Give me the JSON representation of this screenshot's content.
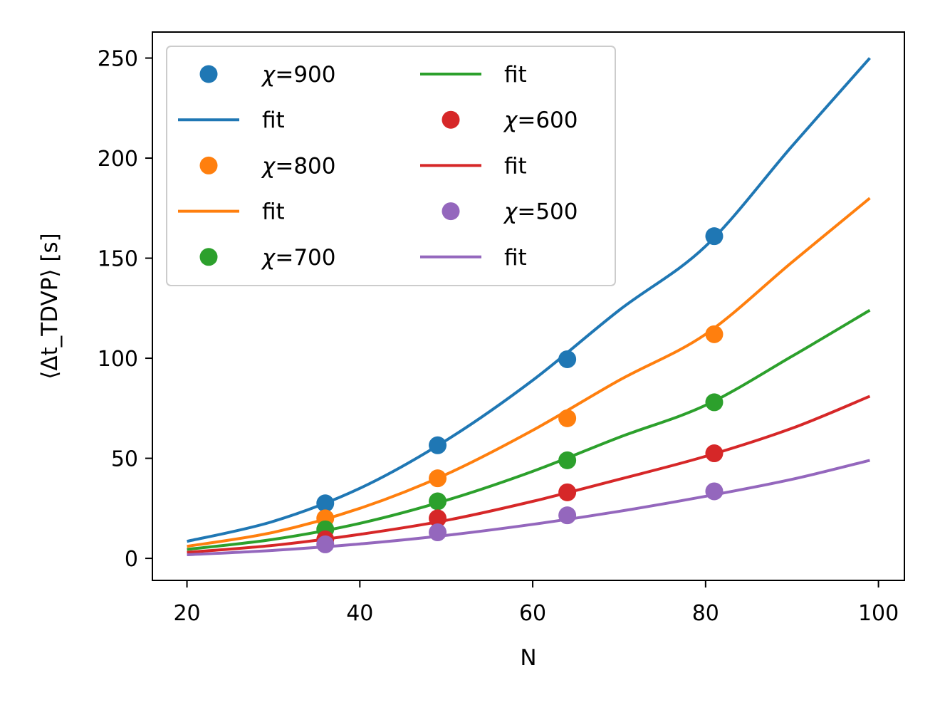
{
  "chart_data": {
    "type": "scatter",
    "xlabel": "N",
    "ylabel": "⟨Δt_TDVP⟩  [s]",
    "xlim": [
      16,
      103
    ],
    "ylim": [
      -11,
      263
    ],
    "x_ticks": [
      "20",
      "40",
      "60",
      "80",
      "100"
    ],
    "y_ticks": [
      "0",
      "50",
      "100",
      "150",
      "200",
      "250"
    ],
    "grid": false,
    "legend_placement": "top-left",
    "legend_columns": 2,
    "series": [
      {
        "name": "χ=900",
        "fit_label": "fit",
        "color": "#1f77b4",
        "points": {
          "x": [
            36,
            49,
            64,
            81
          ],
          "y": [
            27.5,
            56.5,
            99.5,
            161
          ]
        },
        "fit": {
          "x": [
            20,
            30,
            40,
            50,
            60,
            70,
            80,
            90,
            99
          ],
          "y": [
            8.5,
            18.5,
            35,
            59,
            89,
            124,
            156,
            206,
            250
          ]
        }
      },
      {
        "name": "χ=800",
        "fit_label": "fit",
        "color": "#ff7f0e",
        "points": {
          "x": [
            36,
            49,
            64,
            81
          ],
          "y": [
            20,
            40,
            70,
            112
          ]
        },
        "fit": {
          "x": [
            20,
            30,
            40,
            50,
            60,
            70,
            80,
            90,
            99
          ],
          "y": [
            6,
            13,
            25,
            42,
            64,
            89,
            112,
            148,
            180
          ]
        }
      },
      {
        "name": "χ=700",
        "fit_label": "fit",
        "color": "#2ca02c",
        "points": {
          "x": [
            36,
            49,
            64,
            81
          ],
          "y": [
            14.5,
            28.5,
            49,
            78
          ]
        },
        "fit": {
          "x": [
            20,
            30,
            40,
            50,
            60,
            70,
            80,
            90,
            99
          ],
          "y": [
            4.5,
            9.5,
            17.5,
            29,
            43.5,
            60.5,
            76.5,
            101,
            124
          ]
        }
      },
      {
        "name": "χ=600",
        "fit_label": "fit",
        "color": "#d62728",
        "points": {
          "x": [
            36,
            49,
            64,
            81
          ],
          "y": [
            9.5,
            20,
            33,
            52.5
          ]
        },
        "fit": {
          "x": [
            20,
            30,
            40,
            50,
            60,
            70,
            80,
            90,
            99
          ],
          "y": [
            3,
            6.5,
            12,
            19,
            28.5,
            39.5,
            51,
            65,
            81
          ]
        }
      },
      {
        "name": "χ=500",
        "fit_label": "fit",
        "color": "#9467bd",
        "points": {
          "x": [
            36,
            49,
            64,
            81
          ],
          "y": [
            7,
            13,
            21.5,
            33.5
          ]
        },
        "fit": {
          "x": [
            20,
            30,
            40,
            50,
            60,
            70,
            80,
            90,
            99
          ],
          "y": [
            1.8,
            4,
            7.2,
            11.5,
            17,
            23.5,
            31,
            39.5,
            49
          ]
        }
      }
    ]
  }
}
